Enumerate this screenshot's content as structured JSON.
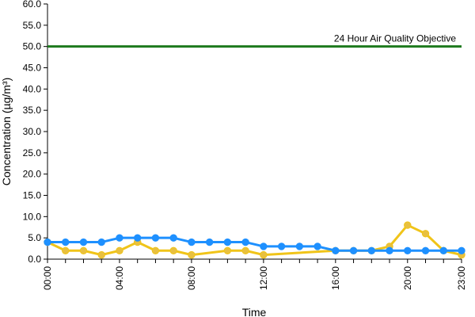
{
  "chart_data": {
    "type": "line",
    "title": "",
    "xlabel": "Time",
    "ylabel": "Concentration (µg/m³)",
    "x": [
      "00:00",
      "01:00",
      "02:00",
      "03:00",
      "04:00",
      "05:00",
      "06:00",
      "07:00",
      "08:00",
      "09:00",
      "10:00",
      "11:00",
      "12:00",
      "13:00",
      "14:00",
      "15:00",
      "16:00",
      "17:00",
      "18:00",
      "19:00",
      "20:00",
      "21:00",
      "22:00",
      "23:00"
    ],
    "x_tick_labels": [
      "00:00",
      "04:00",
      "08:00",
      "12:00",
      "16:00",
      "20:00",
      "23:00"
    ],
    "ylim": [
      0,
      60
    ],
    "y_ticks": [
      "0.0",
      "5.0",
      "10.0",
      "15.0",
      "20.0",
      "25.0",
      "30.0",
      "35.0",
      "40.0",
      "45.0",
      "50.0",
      "55.0",
      "60.0"
    ],
    "grid": false,
    "reference_line": {
      "label": "24 Hour Air Quality Objective",
      "value": 50,
      "color": "#1e7a1e"
    },
    "series": [
      {
        "color": "#f0c419",
        "marker_color": "#e8c040",
        "values": [
          4,
          2,
          2,
          1,
          2,
          4,
          2,
          2,
          1,
          null,
          2,
          2,
          1,
          null,
          null,
          null,
          2,
          2,
          2,
          3,
          8,
          6,
          2,
          1
        ]
      },
      {
        "color": "#1e90ff",
        "marker_color": "#1e90ff",
        "values": [
          4,
          4,
          4,
          4,
          5,
          5,
          5,
          5,
          4,
          4,
          4,
          4,
          3,
          3,
          3,
          3,
          2,
          2,
          2,
          2,
          2,
          2,
          2,
          2
        ]
      }
    ]
  }
}
